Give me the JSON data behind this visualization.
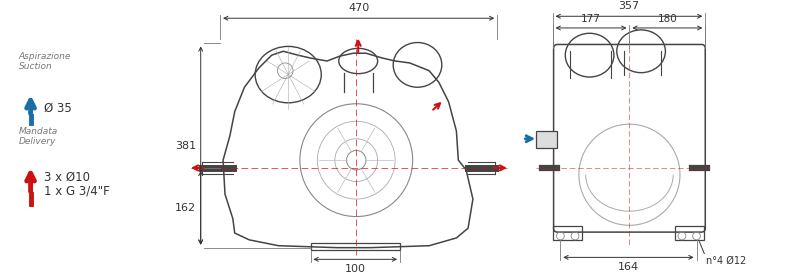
{
  "bg_color": "#ffffff",
  "text_color": "#777777",
  "dim_color": "#333333",
  "red_color": "#cc1111",
  "blue_color": "#1a6ea8",
  "lc": "#444444",
  "legend": {
    "suction_label1": "Aspirazione",
    "suction_label2": "Suction",
    "suction_dim": "Ø 35",
    "delivery_label1": "Mandata",
    "delivery_label2": "Delivery",
    "delivery_dim1": "3 x Ø10",
    "delivery_dim2": "1 x G 3/4\"F"
  },
  "front_dims": {
    "top_width": "470",
    "left_height_upper": "381",
    "left_height_lower": "162",
    "bottom_width": "100"
  },
  "side_dims": {
    "top_width": "357",
    "sub_left": "177",
    "sub_right": "180",
    "bottom_width": "164",
    "bolt_label": "n°4 Ø12"
  }
}
